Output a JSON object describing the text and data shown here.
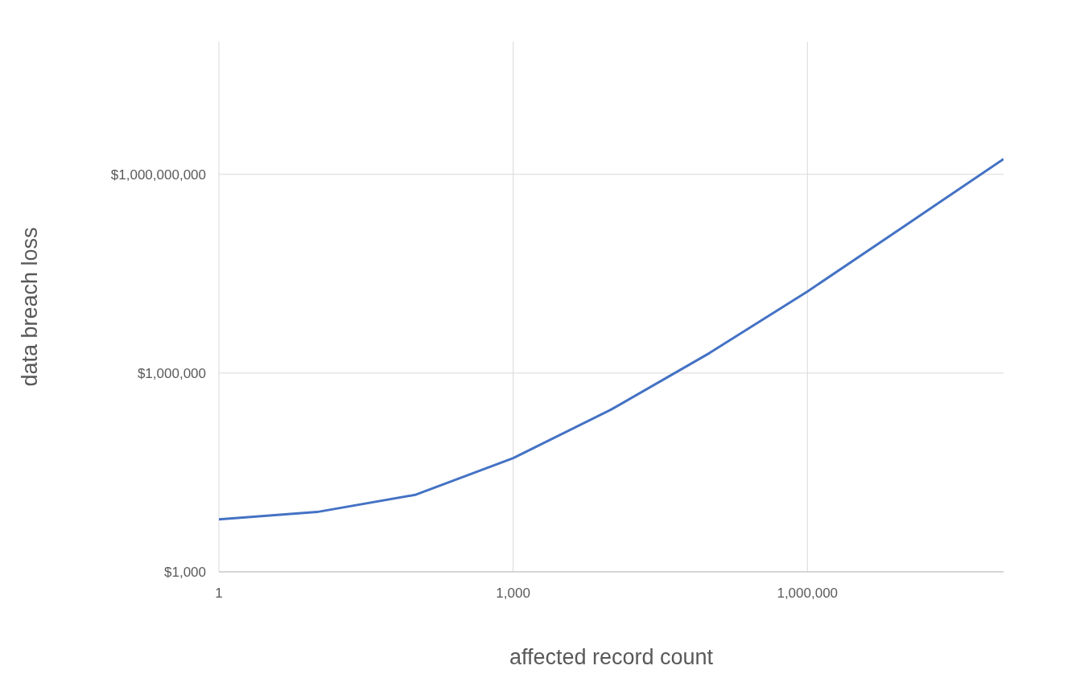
{
  "chart_data": {
    "type": "line",
    "xlabel": "affected record count",
    "ylabel": "data breach loss",
    "log": "xy",
    "grid": true,
    "legend": false,
    "marker": "none",
    "x": [
      1,
      10,
      100,
      1000,
      10000,
      100000,
      1000000,
      10000000,
      100000000
    ],
    "series": [
      {
        "color": "#4472c4",
        "values": [
          6200,
          8000,
          14500,
          52000,
          282000,
          2000000,
          17000000,
          170000000,
          1700000000
        ]
      }
    ],
    "xlim": [
      1,
      100000000
    ],
    "xticks": [
      {
        "value": 1,
        "label": "1"
      },
      {
        "value": 1000,
        "label": "1,000"
      },
      {
        "value": 1000000,
        "label": "1,000,000"
      }
    ],
    "ylim": [
      1000,
      100000000000
    ],
    "yticks": [
      {
        "value": 1000,
        "label": "$1,000"
      },
      {
        "value": 1000000,
        "label": "$1,000,000"
      },
      {
        "value": 1000000000,
        "label": "$1,000,000,000"
      }
    ]
  }
}
